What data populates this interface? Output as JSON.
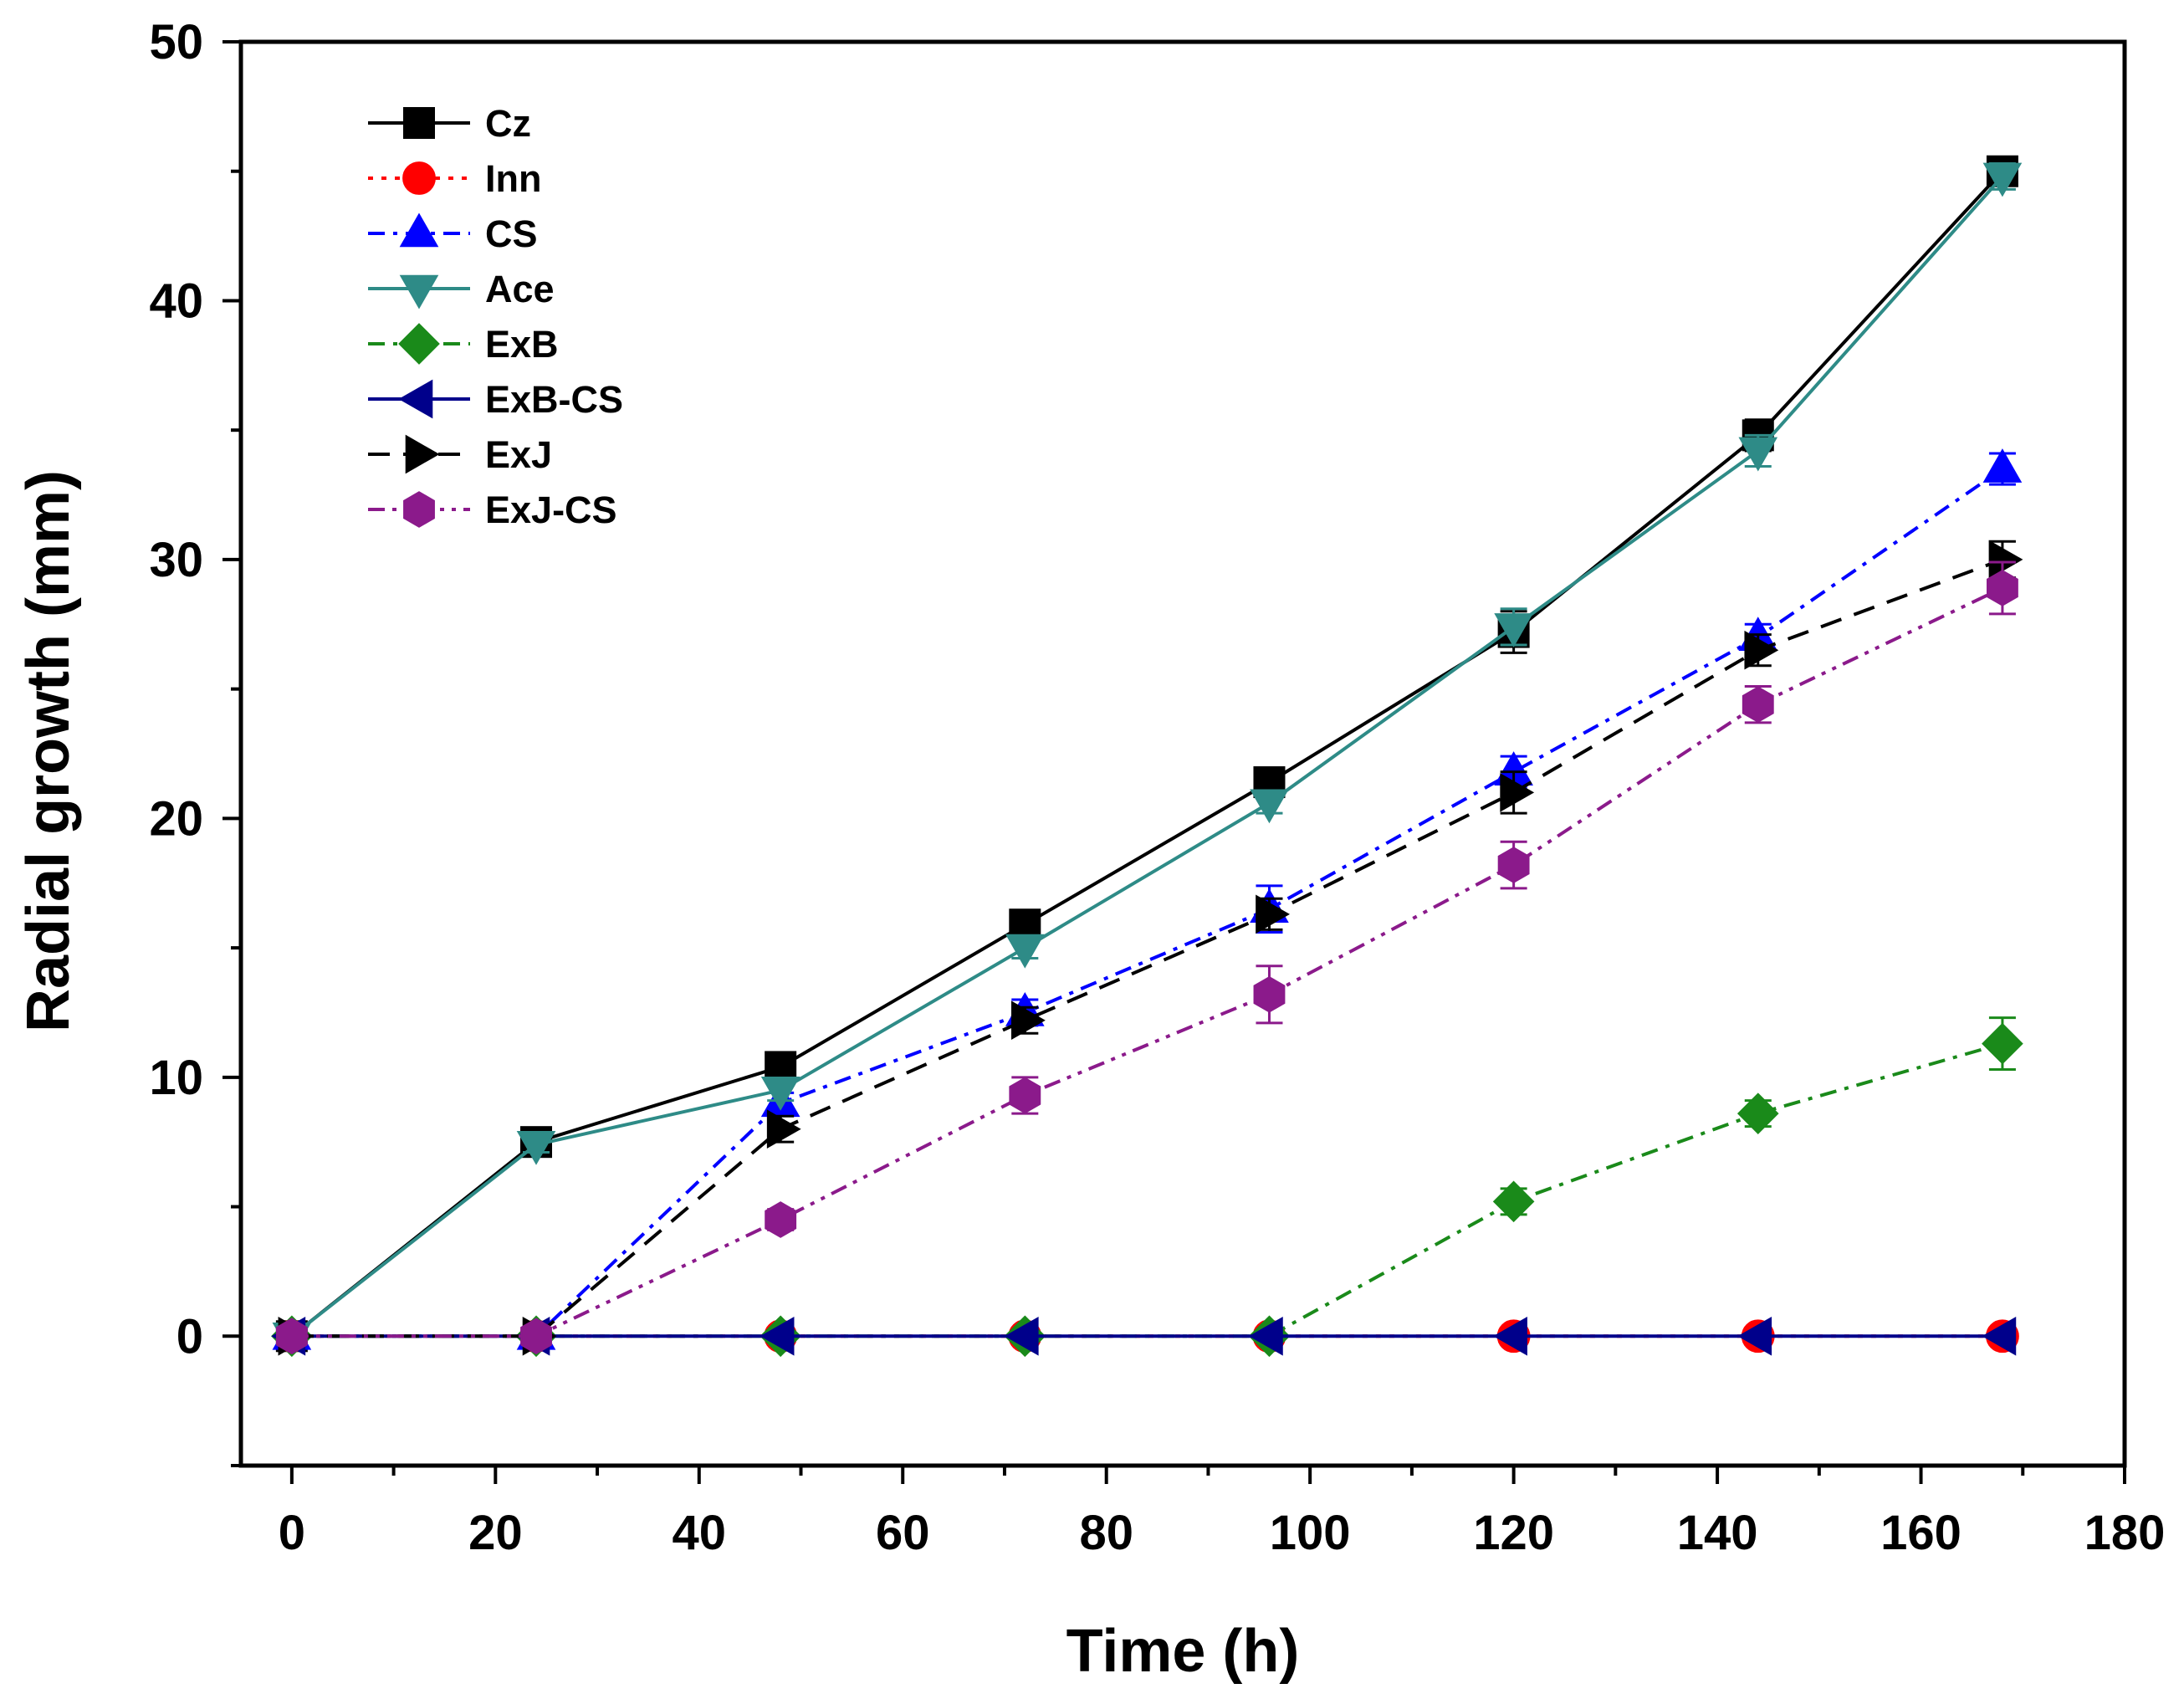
{
  "chart_data": {
    "type": "line",
    "title": "",
    "xlabel": "Time (h)",
    "ylabel": "Radial growth (mm)",
    "xlim": [
      -5,
      180
    ],
    "ylim": [
      -5,
      50
    ],
    "xticks": [
      0,
      20,
      40,
      60,
      80,
      100,
      120,
      140,
      160,
      180
    ],
    "yticks": [
      0,
      10,
      20,
      30,
      40,
      50
    ],
    "grid": false,
    "legend_position": "top-left",
    "x": [
      0,
      24,
      48,
      72,
      96,
      120,
      144,
      168
    ],
    "series": [
      {
        "name": "Cz",
        "color": "#000000",
        "marker": "square",
        "line": "solid",
        "values": [
          0,
          7.5,
          10.4,
          15.9,
          21.4,
          27.2,
          34.8,
          45.0
        ],
        "errors": [
          0,
          0.3,
          0.4,
          0.4,
          0.4,
          0.8,
          0.6,
          0.5
        ]
      },
      {
        "name": "Inn",
        "color": "#ff0000",
        "marker": "circle",
        "line": "dot",
        "values": [
          0,
          0,
          0,
          0,
          0,
          0,
          0,
          0
        ],
        "errors": [
          0,
          0,
          0,
          0,
          0,
          0,
          0,
          0
        ]
      },
      {
        "name": "CS",
        "color": "#0000ff",
        "marker": "triangle-up",
        "line": "dashdot",
        "values": [
          0,
          0,
          9.0,
          12.5,
          16.5,
          21.8,
          27.0,
          33.5
        ],
        "errors": [
          0,
          0,
          0.4,
          0.5,
          0.9,
          0.6,
          0.5,
          0.6
        ]
      },
      {
        "name": "Ace",
        "color": "#2e8b87",
        "marker": "triangle-down",
        "line": "solid",
        "values": [
          0,
          7.4,
          9.5,
          15.0,
          20.6,
          27.4,
          34.2,
          44.8
        ],
        "errors": [
          0,
          0.3,
          0.4,
          0.4,
          0.4,
          0.7,
          0.6,
          0.5
        ]
      },
      {
        "name": "ExB",
        "color": "#1a8a1a",
        "marker": "diamond",
        "line": "dashdot",
        "values": [
          0,
          0,
          0,
          0,
          0,
          5.2,
          8.6,
          11.3
        ],
        "errors": [
          0,
          0,
          0,
          0,
          0,
          0.5,
          0.5,
          1.0
        ]
      },
      {
        "name": "ExB-CS",
        "color": "#00008b",
        "marker": "triangle-left",
        "line": "solid",
        "values": [
          0,
          0,
          0,
          0,
          0,
          0,
          0,
          0
        ],
        "errors": [
          0,
          0,
          0,
          0,
          0,
          0,
          0,
          0
        ]
      },
      {
        "name": "ExJ",
        "color": "#000000",
        "marker": "triangle-right",
        "line": "dash",
        "values": [
          0,
          0,
          8.0,
          12.2,
          16.3,
          21.0,
          26.5,
          30.0
        ],
        "errors": [
          0,
          0,
          0.5,
          0.5,
          0.6,
          0.8,
          0.6,
          0.7
        ]
      },
      {
        "name": "ExJ-CS",
        "color": "#8b1a8b",
        "marker": "hexagon",
        "line": "dashdotdot",
        "values": [
          0,
          0,
          4.5,
          9.3,
          13.2,
          18.2,
          24.4,
          28.9
        ],
        "errors": [
          0,
          0,
          0.4,
          0.7,
          1.1,
          0.9,
          0.7,
          1.0
        ]
      }
    ]
  }
}
